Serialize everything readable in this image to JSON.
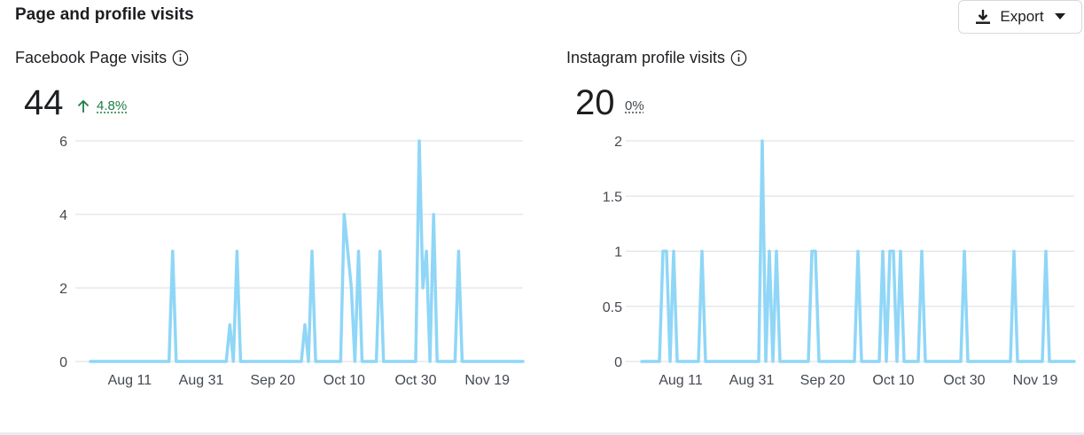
{
  "section_title": "Page and profile visits",
  "export": {
    "label": "Export"
  },
  "colors": {
    "line": "#8fd6f7",
    "grid": "#dadde1",
    "positive": "#1b7f43"
  },
  "panels": [
    {
      "title": "Facebook Page visits",
      "total": "44",
      "delta": "4.8%",
      "delta_direction": "up"
    },
    {
      "title": "Instagram profile visits",
      "total": "20",
      "delta": "0%",
      "delta_direction": "neutral"
    }
  ],
  "chart_data": [
    {
      "type": "line",
      "title": "Facebook Page visits",
      "x_axis_labels": [
        "Aug 11",
        "Aug 31",
        "Sep 20",
        "Oct 10",
        "Oct 30",
        "Nov 19"
      ],
      "x_label_day_index": [
        11,
        31,
        51,
        71,
        91,
        111
      ],
      "start_date": "Aug 1",
      "ylim": [
        0,
        6
      ],
      "y_ticks": [
        0,
        2,
        4,
        6
      ],
      "y_tick_labels": [
        "0",
        "2",
        "4",
        "6"
      ],
      "series": [
        {
          "name": "Facebook Page visits",
          "points": [
            [
              0,
              0
            ],
            [
              22,
              0
            ],
            [
              23,
              3
            ],
            [
              24,
              0
            ],
            [
              38,
              0
            ],
            [
              39,
              1
            ],
            [
              40,
              0
            ],
            [
              41,
              3
            ],
            [
              42,
              0
            ],
            [
              59,
              0
            ],
            [
              60,
              1
            ],
            [
              61,
              0
            ],
            [
              62,
              3
            ],
            [
              63,
              0
            ],
            [
              70,
              0
            ],
            [
              71,
              4
            ],
            [
              73,
              2
            ],
            [
              74,
              0
            ],
            [
              75,
              3
            ],
            [
              76,
              0
            ],
            [
              80,
              0
            ],
            [
              81,
              3
            ],
            [
              82,
              0
            ],
            [
              91,
              0
            ],
            [
              92,
              6
            ],
            [
              93,
              2
            ],
            [
              94,
              3
            ],
            [
              95,
              0
            ],
            [
              96,
              4
            ],
            [
              97,
              0
            ],
            [
              102,
              0
            ],
            [
              103,
              3
            ],
            [
              104,
              0
            ],
            [
              121,
              0
            ]
          ]
        }
      ]
    },
    {
      "type": "line",
      "title": "Instagram profile visits",
      "x_axis_labels": [
        "Aug 11",
        "Aug 31",
        "Sep 20",
        "Oct 10",
        "Oct 30",
        "Nov 19"
      ],
      "x_label_day_index": [
        11,
        31,
        51,
        71,
        91,
        111
      ],
      "start_date": "Aug 1",
      "ylim": [
        0,
        2
      ],
      "y_ticks": [
        0,
        0.5,
        1,
        1.5,
        2
      ],
      "y_tick_labels": [
        "0",
        "0.5",
        "1",
        "1.5",
        "2"
      ],
      "series": [
        {
          "name": "Instagram profile visits",
          "points": [
            [
              0,
              0
            ],
            [
              5,
              0
            ],
            [
              6,
              1
            ],
            [
              7,
              1
            ],
            [
              8,
              0
            ],
            [
              9,
              1
            ],
            [
              10,
              0
            ],
            [
              16,
              0
            ],
            [
              17,
              1
            ],
            [
              18,
              0
            ],
            [
              33,
              0
            ],
            [
              34,
              2
            ],
            [
              35,
              0
            ],
            [
              36,
              1
            ],
            [
              37,
              0
            ],
            [
              38,
              1
            ],
            [
              39,
              0
            ],
            [
              47,
              0
            ],
            [
              48,
              1
            ],
            [
              49,
              1
            ],
            [
              50,
              0
            ],
            [
              60,
              0
            ],
            [
              61,
              1
            ],
            [
              62,
              0
            ],
            [
              67,
              0
            ],
            [
              68,
              1
            ],
            [
              69,
              0
            ],
            [
              70,
              1
            ],
            [
              71,
              1
            ],
            [
              72,
              0
            ],
            [
              73,
              1
            ],
            [
              74,
              0
            ],
            [
              78,
              0
            ],
            [
              79,
              1
            ],
            [
              80,
              0
            ],
            [
              90,
              0
            ],
            [
              91,
              1
            ],
            [
              92,
              0
            ],
            [
              104,
              0
            ],
            [
              105,
              1
            ],
            [
              106,
              0
            ],
            [
              113,
              0
            ],
            [
              114,
              1
            ],
            [
              115,
              0
            ],
            [
              122,
              0
            ]
          ]
        }
      ]
    }
  ]
}
